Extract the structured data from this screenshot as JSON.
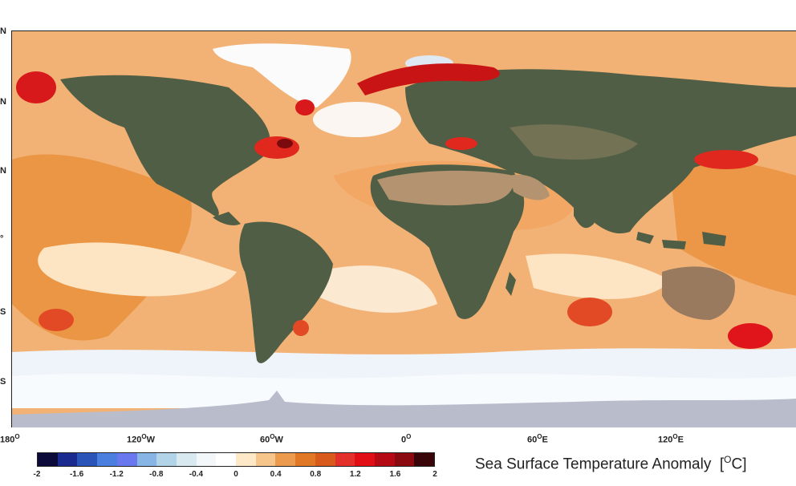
{
  "map": {
    "title_text": "Sea Surface Temperature Anomaly",
    "unit_prefix": "[",
    "unit_sup": "O",
    "unit_suffix": "C]"
  },
  "lat_labels": [
    "N",
    "N",
    "N",
    "°",
    "S",
    "S"
  ],
  "lon_labels": [
    {
      "text": "180",
      "sup": "O"
    },
    {
      "text": "120",
      "sup": "O",
      "dir": "W"
    },
    {
      "text": "60",
      "sup": "O",
      "dir": "W"
    },
    {
      "text": "0",
      "sup": "O"
    },
    {
      "text": "60",
      "sup": "O",
      "dir": "E"
    },
    {
      "text": "120",
      "sup": "O",
      "dir": "E"
    }
  ],
  "colorbar": {
    "ticks": [
      "-2",
      "-1.6",
      "-1.2",
      "-0.8",
      "-0.4",
      "0",
      "0.4",
      "0.8",
      "1.2",
      "1.6",
      "2"
    ],
    "colors": [
      "#0b0a3a",
      "#1a2a8e",
      "#2b54b8",
      "#4a7fe0",
      "#6a78f0",
      "#86b5e6",
      "#b2d4e8",
      "#d8e9f0",
      "#f3f7fa",
      "#ffffff",
      "#fde9c8",
      "#f6c58c",
      "#eb9a4e",
      "#e07826",
      "#d85a1c",
      "#e3302a",
      "#e10f15",
      "#b50a14",
      "#8a0a10",
      "#3a0508"
    ]
  },
  "legend_colors": {
    "ocean_warm": "#f0a35a",
    "ocean_pale": "#fde8c9",
    "ocean_cool": "#e8f0f7",
    "hotspot": "#e0141b",
    "land": "#4f5e45",
    "desert": "#b49470",
    "antarctica": "#b9bccb"
  }
}
